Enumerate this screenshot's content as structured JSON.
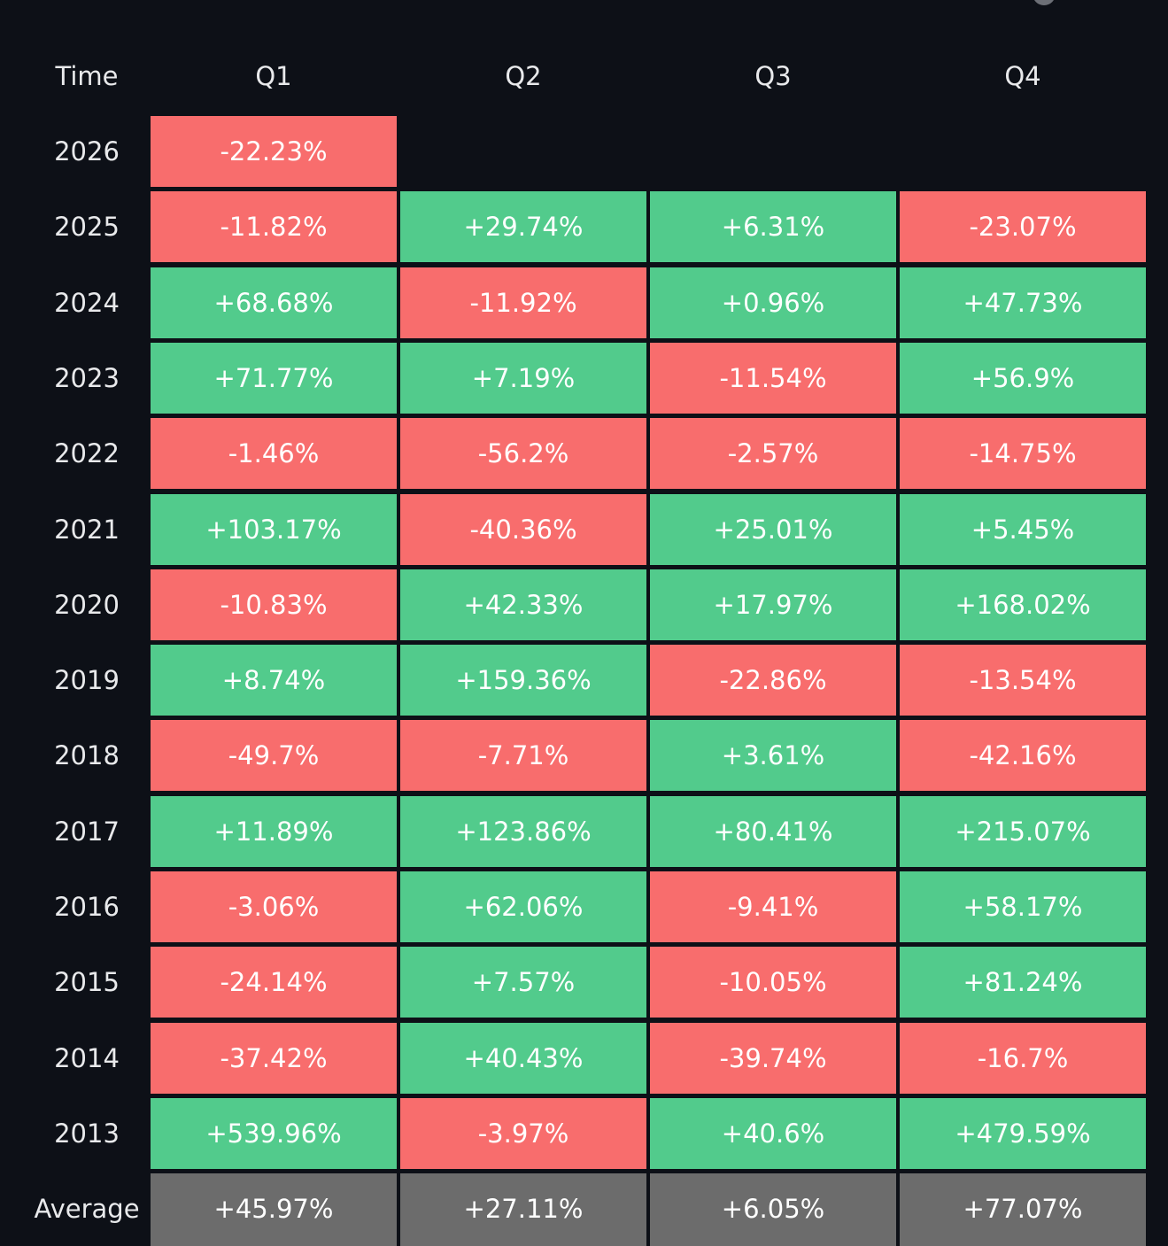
{
  "colors": {
    "background": "#0d1017",
    "positive": "#52cb8c",
    "negative": "#f86d6d",
    "average": "#6c6c6c",
    "header_text": "#e8e9eb",
    "cell_text": "#ffffff"
  },
  "chart_data": {
    "type": "table",
    "title": "",
    "columns": [
      "Time",
      "Q1",
      "Q2",
      "Q3",
      "Q4"
    ],
    "rows": [
      {
        "label": "2026",
        "values": [
          "-22.23%",
          "",
          "",
          ""
        ]
      },
      {
        "label": "2025",
        "values": [
          "-11.82%",
          "+29.74%",
          "+6.31%",
          "-23.07%"
        ]
      },
      {
        "label": "2024",
        "values": [
          "+68.68%",
          "-11.92%",
          "+0.96%",
          "+47.73%"
        ]
      },
      {
        "label": "2023",
        "values": [
          "+71.77%",
          "+7.19%",
          "-11.54%",
          "+56.9%"
        ]
      },
      {
        "label": "2022",
        "values": [
          "-1.46%",
          "-56.2%",
          "-2.57%",
          "-14.75%"
        ]
      },
      {
        "label": "2021",
        "values": [
          "+103.17%",
          "-40.36%",
          "+25.01%",
          "+5.45%"
        ]
      },
      {
        "label": "2020",
        "values": [
          "-10.83%",
          "+42.33%",
          "+17.97%",
          "+168.02%"
        ]
      },
      {
        "label": "2019",
        "values": [
          "+8.74%",
          "+159.36%",
          "-22.86%",
          "-13.54%"
        ]
      },
      {
        "label": "2018",
        "values": [
          "-49.7%",
          "-7.71%",
          "+3.61%",
          "-42.16%"
        ]
      },
      {
        "label": "2017",
        "values": [
          "+11.89%",
          "+123.86%",
          "+80.41%",
          "+215.07%"
        ]
      },
      {
        "label": "2016",
        "values": [
          "-3.06%",
          "+62.06%",
          "-9.41%",
          "+58.17%"
        ]
      },
      {
        "label": "2015",
        "values": [
          "-24.14%",
          "+7.57%",
          "-10.05%",
          "+81.24%"
        ]
      },
      {
        "label": "2014",
        "values": [
          "-37.42%",
          "+40.43%",
          "-39.74%",
          "-16.7%"
        ]
      },
      {
        "label": "2013",
        "values": [
          "+539.96%",
          "-3.97%",
          "+40.6%",
          "+479.59%"
        ]
      }
    ],
    "average": {
      "label": "Average",
      "values": [
        "+45.97%",
        "+27.11%",
        "+6.05%",
        "+77.07%"
      ]
    }
  }
}
